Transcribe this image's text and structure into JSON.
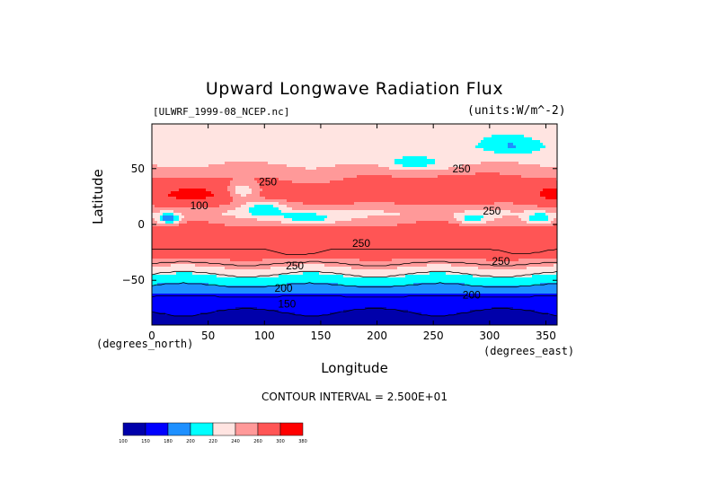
{
  "chart_data": {
    "type": "heatmap",
    "title": "Upward Longwave Radiation Flux",
    "file_label": "[ULWRF_1999-08_NCEP.nc]",
    "units_label": "(units:W/m^-2)",
    "xlabel": "Longitude",
    "ylabel": "Latitude",
    "x_unit_label": "(degrees_east)",
    "y_unit_label": "(degrees_north)",
    "xlim": [
      0,
      360
    ],
    "ylim": [
      -90,
      90
    ],
    "x_ticks": [
      0,
      50,
      100,
      150,
      200,
      250,
      300,
      350
    ],
    "y_ticks": [
      -50,
      0,
      50
    ],
    "contour_interval_label": "CONTOUR INTERVAL = 2.500E+01",
    "colorbar": {
      "levels": [
        100,
        150,
        180,
        200,
        220,
        240,
        260,
        300,
        380
      ],
      "colors": [
        "#0000aa",
        "#0000ff",
        "#1e90ff",
        "#00ffff",
        "#ffe4e1",
        "#ff9999",
        "#ff5555",
        "#ff0000"
      ]
    },
    "contour_labels": [
      {
        "text": "250",
        "lon": 275,
        "lat": 50
      },
      {
        "text": "250",
        "lon": 103,
        "lat": 38
      },
      {
        "text": "100",
        "lon": 42,
        "lat": 17
      },
      {
        "text": "250",
        "lon": 302,
        "lat": 12
      },
      {
        "text": "250",
        "lon": 186,
        "lat": -17
      },
      {
        "text": "250",
        "lon": 127,
        "lat": -37
      },
      {
        "text": "250",
        "lon": 310,
        "lat": -33
      },
      {
        "text": "200",
        "lon": 117,
        "lat": -57
      },
      {
        "text": "200",
        "lon": 284,
        "lat": -63
      },
      {
        "text": "150",
        "lon": 120,
        "lat": -71
      }
    ],
    "bands_by_latitude": [
      {
        "lat": 85,
        "value": 230
      },
      {
        "lat": 70,
        "value": 225
      },
      {
        "lat": 55,
        "value": 238
      },
      {
        "lat": 35,
        "value": 268
      },
      {
        "lat": 25,
        "value": 275
      },
      {
        "lat": 10,
        "value": 240
      },
      {
        "lat": 0,
        "value": 262
      },
      {
        "lat": -15,
        "value": 285
      },
      {
        "lat": -30,
        "value": 262
      },
      {
        "lat": -40,
        "value": 235
      },
      {
        "lat": -50,
        "value": 210
      },
      {
        "lat": -60,
        "value": 185
      },
      {
        "lat": -70,
        "value": 160
      },
      {
        "lat": -85,
        "value": 140
      }
    ]
  }
}
